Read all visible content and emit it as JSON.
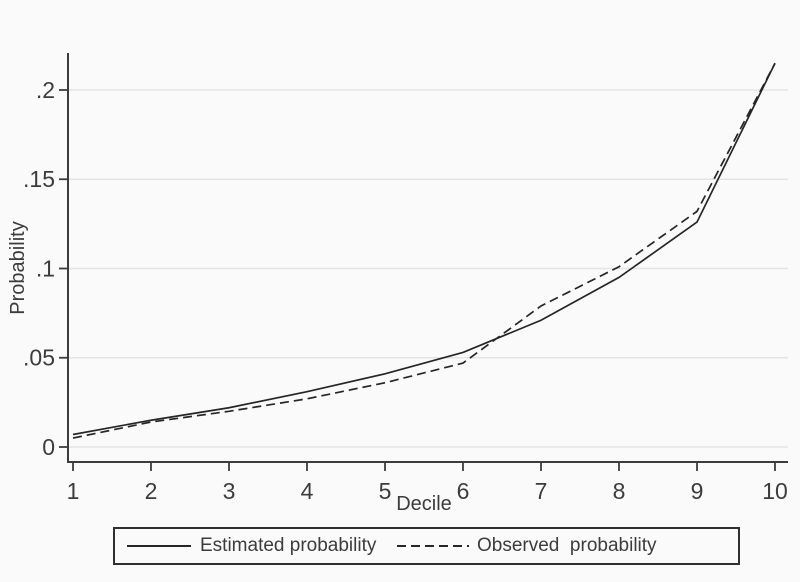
{
  "chart_data": {
    "type": "line",
    "title": "",
    "xlabel": "Decile",
    "ylabel": "Probability",
    "x": [
      1,
      2,
      3,
      4,
      5,
      6,
      7,
      8,
      9,
      10
    ],
    "series": [
      {
        "name": "Estimated probability",
        "line_style": "solid",
        "color": "#262626",
        "values": [
          0.007,
          0.015,
          0.022,
          0.031,
          0.041,
          0.053,
          0.071,
          0.095,
          0.126,
          0.215
        ]
      },
      {
        "name": "Observed  probability",
        "line_style": "dashed",
        "color": "#262626",
        "values": [
          0.005,
          0.014,
          0.02,
          0.027,
          0.036,
          0.047,
          0.079,
          0.101,
          0.132,
          0.215
        ]
      }
    ],
    "xlim": [
      1,
      10
    ],
    "ylim": [
      0,
      0.2
    ],
    "xticks": {
      "values": [
        1,
        2,
        3,
        4,
        5,
        6,
        7,
        8,
        9,
        10
      ],
      "labels": [
        "1",
        "2",
        "3",
        "4",
        "5",
        "6",
        "7",
        "8",
        "9",
        "10"
      ]
    },
    "yticks": {
      "values": [
        0,
        0.05,
        0.1,
        0.15,
        0.2
      ],
      "labels": [
        "0",
        ".05",
        ".1",
        ".15",
        ".2"
      ]
    },
    "grid": "horizontal-only",
    "legend_position": "bottom-center-boxed",
    "colors": {
      "line": "#262626",
      "grid": "#e4e4e4",
      "axis": "#3c3c3c",
      "text": "#3c3c3c",
      "background": "#fafafa",
      "legend_border": "#2f2f2f"
    }
  }
}
